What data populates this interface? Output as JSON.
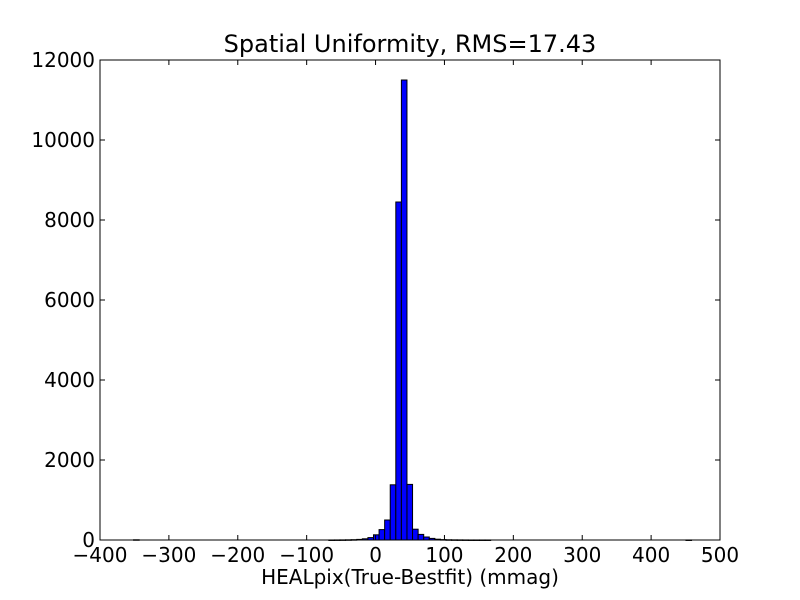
{
  "chart_data": {
    "type": "bar",
    "title": "Spatial Uniformity, RMS=17.43",
    "xlabel": "HEALpix(True-Bestfit) (mmag)",
    "ylabel": "",
    "xlim": [
      -400,
      500
    ],
    "ylim": [
      0,
      12000
    ],
    "xticks": [
      -400,
      -300,
      -200,
      -100,
      0,
      100,
      200,
      300,
      400,
      500
    ],
    "yticks": [
      0,
      2000,
      4000,
      6000,
      8000,
      10000,
      12000
    ],
    "xtick_labels": [
      "−400",
      "−300",
      "−200",
      "−100",
      "0",
      "100",
      "200",
      "300",
      "400",
      "500"
    ],
    "ytick_labels": [
      "0",
      "2000",
      "4000",
      "6000",
      "8000",
      "10000",
      "12000"
    ],
    "grid": false,
    "bin_width": 8.1,
    "bin_start": -351.3,
    "bin_counts": [
      6,
      0,
      0,
      0,
      0,
      0,
      0,
      0,
      0,
      0,
      0,
      0,
      0,
      0,
      0,
      0,
      0,
      0,
      0,
      0,
      0,
      0,
      0,
      0,
      0,
      0,
      0,
      0,
      0,
      0,
      0,
      0,
      0,
      0,
      0,
      1,
      2,
      3,
      5,
      8,
      15,
      30,
      60,
      130,
      260,
      500,
      1380,
      8450,
      11500,
      1390,
      270,
      140,
      75,
      40,
      20,
      10,
      6,
      4,
      3,
      2,
      1,
      1,
      1,
      1,
      0,
      0,
      0,
      0,
      0,
      0,
      0,
      0,
      0,
      0,
      0,
      0,
      0,
      0,
      0,
      0,
      0,
      0,
      0,
      0,
      0,
      0,
      0,
      0,
      0,
      0,
      0,
      0,
      0,
      0,
      0,
      0,
      0,
      0,
      0,
      1
    ],
    "colors": {
      "bar_fill": "#0000ff",
      "bar_edge": "#000000",
      "axes": "#000000",
      "background": "#ffffff"
    }
  }
}
